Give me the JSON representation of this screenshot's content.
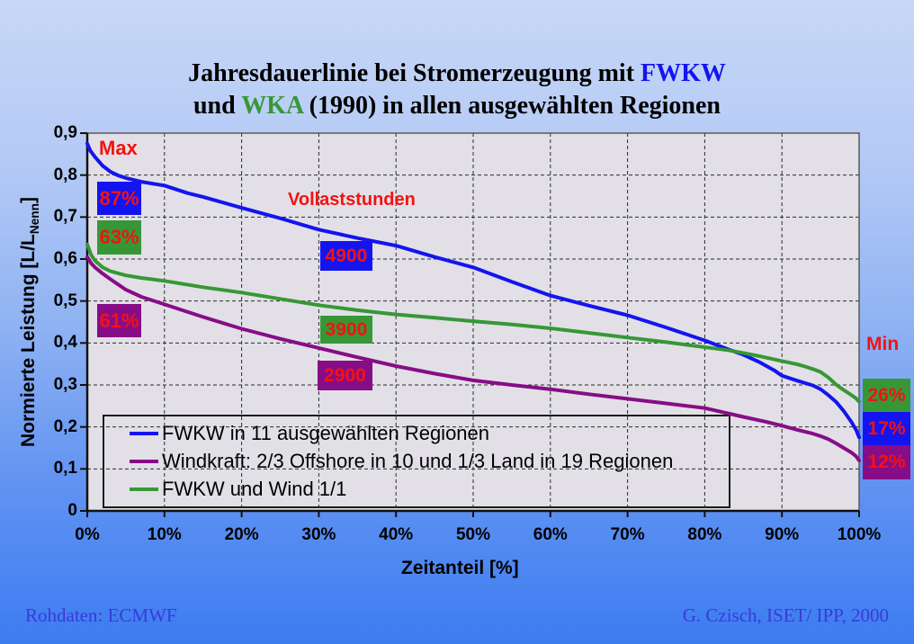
{
  "title": {
    "line1_prefix": "Jahresdauerlinie bei Stromerzeugung mit ",
    "line1_highlight": "FWKW",
    "line2_prefix": "und ",
    "line2_highlight": "WKA",
    "line2_suffix": " (1990) in allen ausgewählten Regionen"
  },
  "colors": {
    "background_top": "#c7d7f7",
    "background_bottom": "#3c7cf1",
    "plot_background": "#e2e0e6",
    "grid": "#2b2b2b",
    "red_label": "#f51111",
    "series_blue": "#1414f0",
    "series_purple": "#870d87",
    "series_green": "#379737",
    "credits": "#3a3ad9"
  },
  "chart_data": {
    "type": "line",
    "xlabel": "Zeitanteil [%]",
    "ylabel_prefix": "Normierte Leistung [L/L",
    "ylabel_sub": "Nenn",
    "ylabel_close": "]",
    "xlim": [
      0,
      100
    ],
    "ylim": [
      0,
      0.9
    ],
    "grid": true,
    "legend_position": "bottom-left inside plot",
    "x_tick_labels": [
      "0%",
      "10%",
      "20%",
      "30%",
      "40%",
      "50%",
      "60%",
      "70%",
      "80%",
      "90%",
      "100%"
    ],
    "y_tick_labels": [
      "0",
      "0,1",
      "0,2",
      "0,3",
      "0,4",
      "0,5",
      "0,6",
      "0,7",
      "0,8",
      "0,9"
    ],
    "series": [
      {
        "name": "FWKW in 11 ausgewählten Regionen",
        "color_key": "series_blue",
        "points": [
          [
            0,
            0.875
          ],
          [
            0.4,
            0.858
          ],
          [
            1,
            0.843
          ],
          [
            2,
            0.822
          ],
          [
            3,
            0.808
          ],
          [
            4,
            0.799
          ],
          [
            5,
            0.793
          ],
          [
            7,
            0.784
          ],
          [
            10,
            0.775
          ],
          [
            13,
            0.757
          ],
          [
            15,
            0.748
          ],
          [
            20,
            0.722
          ],
          [
            25,
            0.697
          ],
          [
            30,
            0.67
          ],
          [
            35,
            0.65
          ],
          [
            40,
            0.632
          ],
          [
            45,
            0.605
          ],
          [
            50,
            0.58
          ],
          [
            55,
            0.546
          ],
          [
            60,
            0.513
          ],
          [
            65,
            0.489
          ],
          [
            70,
            0.466
          ],
          [
            75,
            0.437
          ],
          [
            80,
            0.406
          ],
          [
            83,
            0.385
          ],
          [
            85,
            0.372
          ],
          [
            87,
            0.355
          ],
          [
            89,
            0.335
          ],
          [
            90,
            0.322
          ],
          [
            92,
            0.31
          ],
          [
            94,
            0.299
          ],
          [
            95,
            0.29
          ],
          [
            96,
            0.276
          ],
          [
            97,
            0.26
          ],
          [
            98,
            0.238
          ],
          [
            99,
            0.212
          ],
          [
            99.6,
            0.193
          ],
          [
            100,
            0.175
          ]
        ]
      },
      {
        "name": "Windkraft: 2/3 Offshore in 10 und 1/3 Land in 19 Regionen",
        "color_key": "series_purple",
        "points": [
          [
            0,
            0.605
          ],
          [
            0.5,
            0.59
          ],
          [
            1,
            0.58
          ],
          [
            2,
            0.565
          ],
          [
            3,
            0.552
          ],
          [
            5,
            0.527
          ],
          [
            7,
            0.51
          ],
          [
            10,
            0.492
          ],
          [
            15,
            0.462
          ],
          [
            20,
            0.434
          ],
          [
            25,
            0.41
          ],
          [
            30,
            0.388
          ],
          [
            35,
            0.366
          ],
          [
            40,
            0.345
          ],
          [
            45,
            0.327
          ],
          [
            50,
            0.311
          ],
          [
            55,
            0.3
          ],
          [
            60,
            0.29
          ],
          [
            65,
            0.278
          ],
          [
            70,
            0.267
          ],
          [
            75,
            0.256
          ],
          [
            80,
            0.245
          ],
          [
            85,
            0.224
          ],
          [
            88,
            0.212
          ],
          [
            90,
            0.203
          ],
          [
            92,
            0.193
          ],
          [
            94,
            0.184
          ],
          [
            95,
            0.178
          ],
          [
            96,
            0.171
          ],
          [
            97,
            0.161
          ],
          [
            98,
            0.15
          ],
          [
            99,
            0.139
          ],
          [
            99.6,
            0.13
          ],
          [
            100,
            0.12
          ]
        ]
      },
      {
        "name": "FWKW und Wind 1/1",
        "color_key": "series_green",
        "points": [
          [
            0,
            0.635
          ],
          [
            0.5,
            0.61
          ],
          [
            1,
            0.596
          ],
          [
            2,
            0.58
          ],
          [
            3,
            0.571
          ],
          [
            5,
            0.561
          ],
          [
            7,
            0.555
          ],
          [
            10,
            0.548
          ],
          [
            15,
            0.533
          ],
          [
            20,
            0.52
          ],
          [
            25,
            0.505
          ],
          [
            30,
            0.49
          ],
          [
            35,
            0.478
          ],
          [
            40,
            0.468
          ],
          [
            45,
            0.46
          ],
          [
            50,
            0.452
          ],
          [
            55,
            0.444
          ],
          [
            60,
            0.435
          ],
          [
            65,
            0.424
          ],
          [
            70,
            0.413
          ],
          [
            75,
            0.402
          ],
          [
            80,
            0.39
          ],
          [
            83,
            0.383
          ],
          [
            85,
            0.376
          ],
          [
            87,
            0.369
          ],
          [
            90,
            0.357
          ],
          [
            92,
            0.349
          ],
          [
            93,
            0.344
          ],
          [
            94,
            0.338
          ],
          [
            95,
            0.331
          ],
          [
            96,
            0.318
          ],
          [
            97,
            0.301
          ],
          [
            98,
            0.288
          ],
          [
            99,
            0.276
          ],
          [
            99.6,
            0.268
          ],
          [
            100,
            0.26
          ]
        ]
      }
    ],
    "annotations": {
      "max_label": "Max",
      "vollaststunden_label": "Vollaststunden",
      "min_label": "Min",
      "left_boxes": [
        {
          "text": "87%",
          "color": "series_blue"
        },
        {
          "text": "63%",
          "color": "series_green"
        },
        {
          "text": "61%",
          "color": "series_purple"
        }
      ],
      "mid_boxes": [
        {
          "text": "4900",
          "color": "series_blue"
        },
        {
          "text": "3900",
          "color": "series_green"
        },
        {
          "text": "2900",
          "color": "series_purple"
        }
      ],
      "right_boxes": [
        {
          "text": "26%",
          "color": "series_green"
        },
        {
          "text": "17%",
          "color": "series_blue"
        },
        {
          "text": "12%",
          "color": "series_purple"
        }
      ]
    }
  },
  "footer": {
    "left": "Rohdaten: ECMWF",
    "right": "G. Czisch, ISET/ IPP, 2000"
  }
}
